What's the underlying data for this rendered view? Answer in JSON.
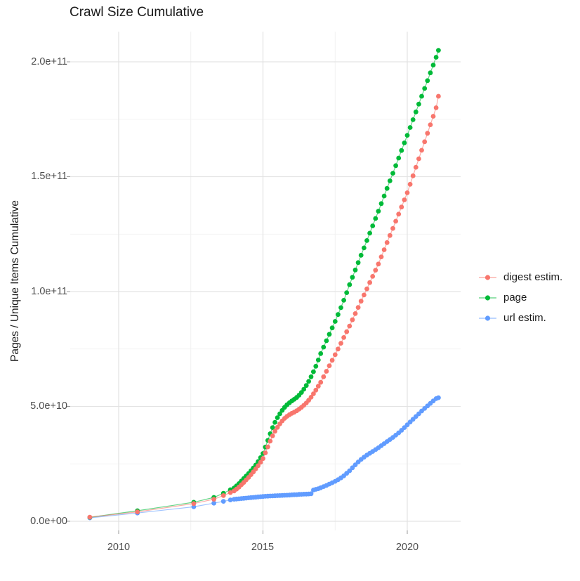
{
  "chart_data": {
    "type": "scatter",
    "title": "Crawl Size Cumulative",
    "xlabel": "",
    "ylabel": "Pages / Unique Items Cumulative",
    "grid": "on",
    "legend_position": "right",
    "x_axis": {
      "tick_values": [
        2010,
        2015,
        2020
      ],
      "tick_labels": [
        "2010",
        "2015",
        "2020"
      ],
      "minor_tick_values": [
        2012.5,
        2017.5
      ],
      "range": [
        2008.3,
        2021.8
      ]
    },
    "y_axis": {
      "tick_values_billions": [
        0,
        50,
        100,
        150,
        200
      ],
      "tick_labels": [
        "0.0e+00",
        "5.0e+10",
        "1.0e+11",
        "1.5e+11",
        "2.0e+11"
      ],
      "minor_tick_values_billions": [
        25,
        75,
        125,
        175
      ],
      "range_billions": [
        0,
        210
      ]
    },
    "x_years": [
      2009.0,
      2010.65,
      2012.6,
      2013.3,
      2013.63,
      2013.87,
      2014.0,
      2014.083,
      2014.167,
      2014.25,
      2014.333,
      2014.417,
      2014.5,
      2014.583,
      2014.667,
      2014.75,
      2014.833,
      2014.917,
      2015.0,
      2015.083,
      2015.167,
      2015.25,
      2015.333,
      2015.417,
      2015.5,
      2015.583,
      2015.667,
      2015.75,
      2015.833,
      2015.917,
      2016.0,
      2016.083,
      2016.167,
      2016.25,
      2016.333,
      2016.417,
      2016.5,
      2016.583,
      2016.667,
      2016.75,
      2016.833,
      2016.917,
      2017.0,
      2017.1,
      2017.2,
      2017.3,
      2017.4,
      2017.5,
      2017.6,
      2017.7,
      2017.8,
      2017.9,
      2018.0,
      2018.1,
      2018.2,
      2018.3,
      2018.4,
      2018.5,
      2018.6,
      2018.7,
      2018.8,
      2018.9,
      2019.0,
      2019.1,
      2019.2,
      2019.3,
      2019.4,
      2019.5,
      2019.6,
      2019.7,
      2019.8,
      2019.9,
      2020.0,
      2020.1,
      2020.2,
      2020.3,
      2020.4,
      2020.5,
      2020.6,
      2020.7,
      2020.8,
      2020.9,
      2021.0,
      2021.08
    ],
    "series": [
      {
        "name": "digest estim.",
        "color": "#F8766D",
        "values_billions": [
          1.8,
          4.1,
          7.7,
          9.6,
          11.2,
          12.5,
          13.2,
          14.0,
          14.9,
          15.9,
          16.9,
          18.0,
          19.1,
          20.3,
          21.5,
          22.8,
          24.2,
          25.7,
          27.3,
          29.8,
          32.4,
          34.9,
          37.2,
          39.2,
          40.9,
          42.4,
          43.7,
          44.8,
          45.7,
          46.4,
          47.0,
          47.5,
          48.1,
          48.8,
          49.6,
          50.5,
          51.5,
          52.7,
          54.0,
          55.5,
          57.1,
          58.8,
          60.5,
          62.9,
          65.3,
          67.7,
          70.1,
          72.5,
          75.0,
          77.5,
          80.0,
          82.5,
          85.0,
          87.7,
          90.4,
          93.1,
          95.8,
          98.5,
          101.2,
          103.9,
          106.6,
          109.3,
          112.0,
          115.1,
          118.2,
          121.3,
          124.4,
          127.5,
          130.6,
          133.7,
          136.8,
          139.9,
          143.0,
          146.7,
          150.4,
          154.1,
          157.8,
          161.5,
          165.2,
          168.9,
          172.6,
          176.3,
          180.0,
          185.0
        ]
      },
      {
        "name": "page",
        "color": "#00BA38",
        "values_billions": [
          1.7,
          4.6,
          8.3,
          10.4,
          12.2,
          13.7,
          14.5,
          15.4,
          16.4,
          17.5,
          18.6,
          19.7,
          20.8,
          22.0,
          23.2,
          24.5,
          26.0,
          27.7,
          29.5,
          32.3,
          35.2,
          38.1,
          40.8,
          43.1,
          45.1,
          46.8,
          48.3,
          49.6,
          50.7,
          51.6,
          52.4,
          53.1,
          53.9,
          54.9,
          56.1,
          57.5,
          59.1,
          60.9,
          62.9,
          65.1,
          67.5,
          70.2,
          73.0,
          75.8,
          78.6,
          81.4,
          84.2,
          87.0,
          90.0,
          93.0,
          96.2,
          99.5,
          103.0,
          106.2,
          109.4,
          112.6,
          115.8,
          119.0,
          122.2,
          125.4,
          128.6,
          131.8,
          135.0,
          138.3,
          141.6,
          144.9,
          148.2,
          151.5,
          154.8,
          158.1,
          161.4,
          164.7,
          168.0,
          171.4,
          174.8,
          178.2,
          181.6,
          185.0,
          188.4,
          191.8,
          195.2,
          198.6,
          202.0,
          205.0
        ]
      },
      {
        "name": "url estim.",
        "color": "#619CFF",
        "values_billions": [
          1.5,
          3.6,
          6.3,
          7.9,
          8.7,
          9.3,
          9.6,
          9.7,
          9.8,
          9.9,
          10.0,
          10.1,
          10.2,
          10.3,
          10.4,
          10.5,
          10.6,
          10.7,
          10.8,
          10.9,
          10.95,
          11.0,
          11.05,
          11.1,
          11.15,
          11.2,
          11.25,
          11.3,
          11.35,
          11.4,
          11.5,
          11.55,
          11.6,
          11.7,
          11.75,
          11.8,
          11.85,
          11.9,
          12.0,
          13.6,
          13.9,
          14.2,
          14.6,
          15.1,
          15.6,
          16.2,
          16.8,
          17.4,
          18.1,
          18.9,
          19.8,
          20.9,
          22.0,
          23.3,
          24.6,
          25.8,
          26.9,
          27.9,
          28.8,
          29.6,
          30.4,
          31.2,
          32.0,
          32.9,
          33.8,
          34.7,
          35.6,
          36.5,
          37.5,
          38.5,
          39.6,
          40.8,
          42.0,
          43.2,
          44.4,
          45.6,
          46.8,
          48.0,
          49.1,
          50.2,
          51.3,
          52.4,
          53.4,
          53.8
        ]
      }
    ],
    "legend": {
      "entries": [
        {
          "label": "digest estim."
        },
        {
          "label": "page"
        },
        {
          "label": "url estim."
        }
      ]
    },
    "style": {
      "major_grid_color": "#E3E3E3",
      "minor_grid_color": "#EFEFEF",
      "tick_mark_color": "#999999",
      "point_radius": 3.4
    }
  }
}
